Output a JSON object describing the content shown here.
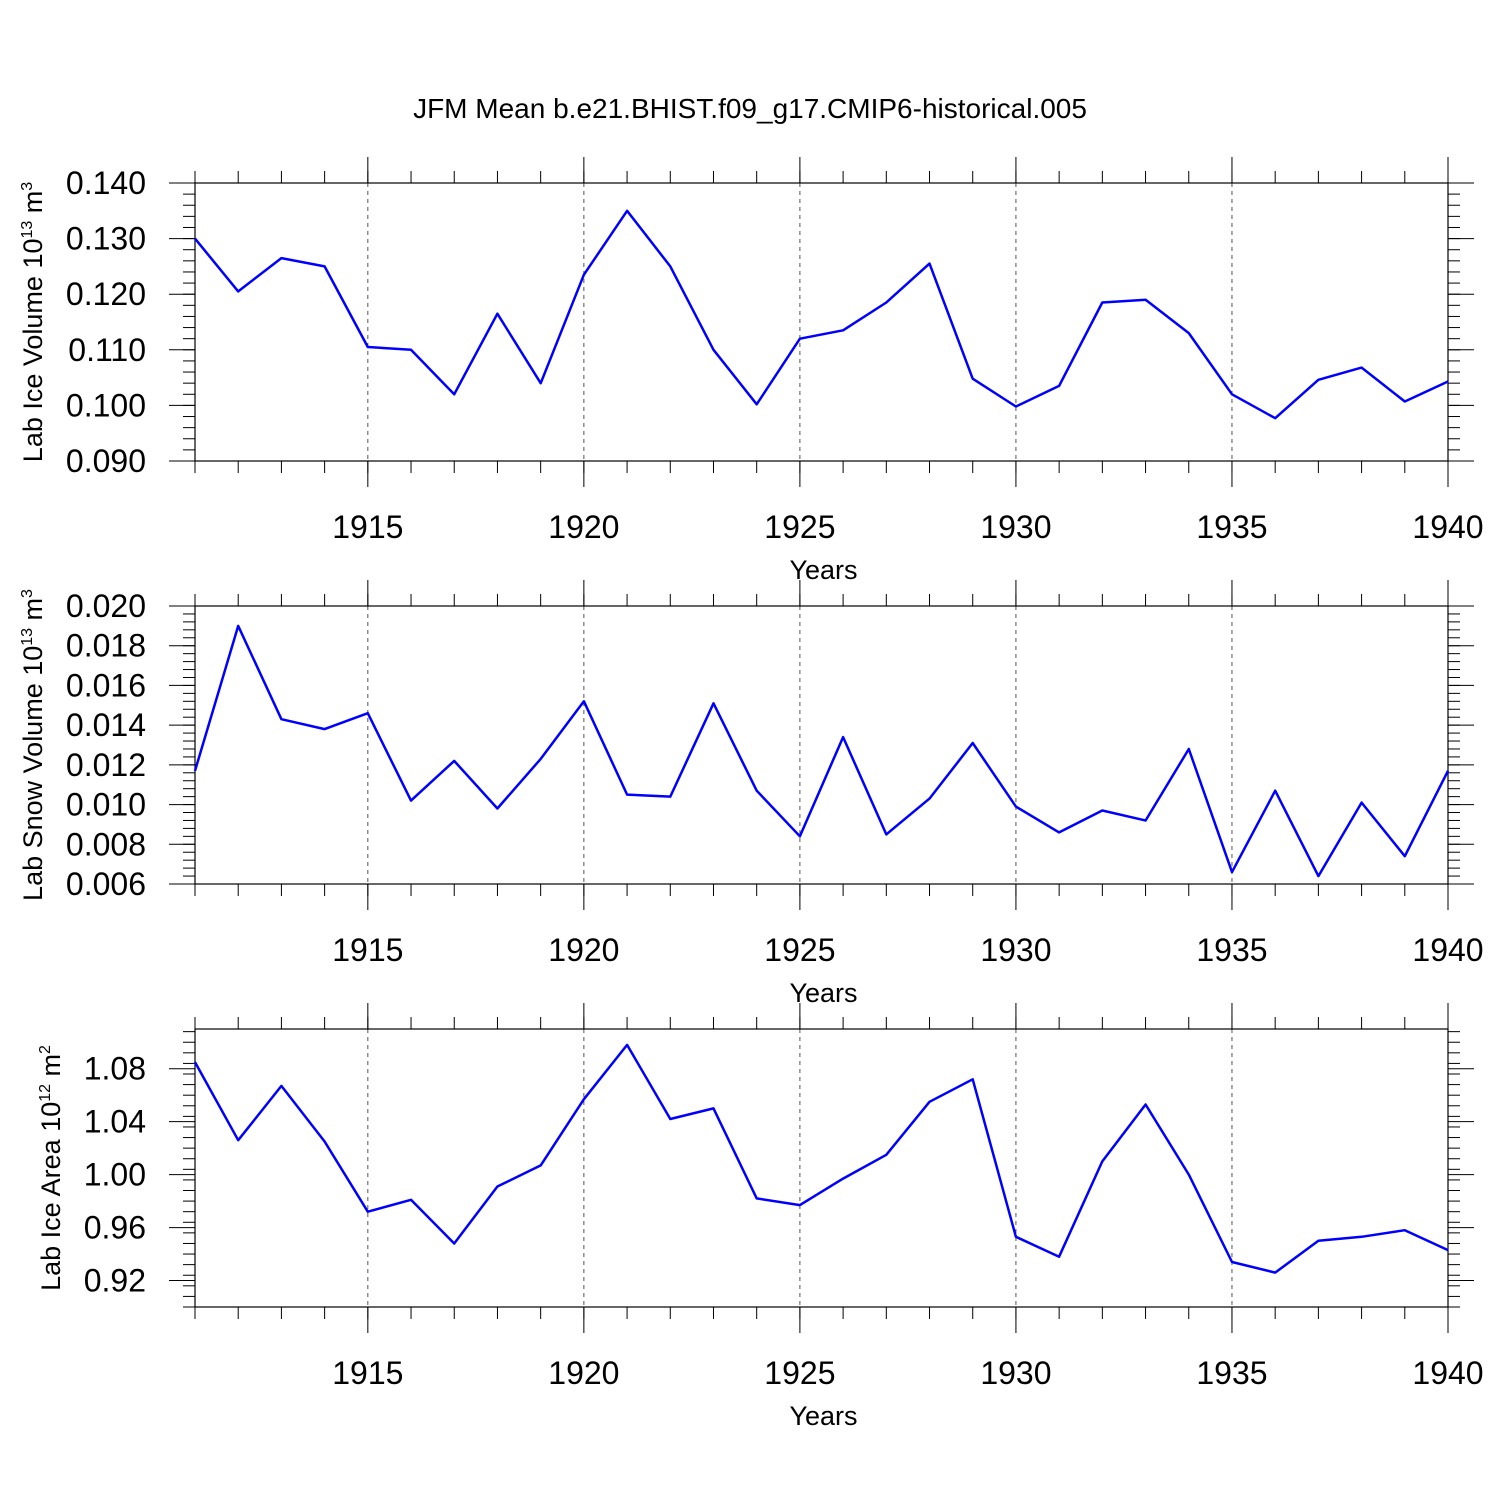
{
  "title": "JFM Mean b.e21.BHIST.f09_g17.CMIP6-historical.005",
  "chart_data": [
    {
      "type": "line",
      "title": "",
      "xlabel": "Years",
      "ylabel": {
        "prefix": "Lab Ice Volume 10",
        "exp": "13",
        "mid": " m",
        "unit_exp": "3"
      },
      "xlim": [
        1911,
        1940
      ],
      "ylim": [
        0.09,
        0.14
      ],
      "yticks": [
        0.09,
        0.1,
        0.11,
        0.12,
        0.13,
        0.14
      ],
      "yticklabels": [
        "0.090",
        "0.100",
        "0.110",
        "0.120",
        "0.130",
        "0.140"
      ],
      "xticks": [
        1915,
        1920,
        1925,
        1930,
        1935,
        1940
      ],
      "xticklabels": [
        "1915",
        "1920",
        "1925",
        "1930",
        "1935",
        "1940"
      ],
      "grid": "vertical dashed at major x ticks",
      "series_color": "#0000ff",
      "x": [
        1911,
        1912,
        1913,
        1914,
        1915,
        1916,
        1917,
        1918,
        1919,
        1920,
        1921,
        1922,
        1923,
        1924,
        1925,
        1926,
        1927,
        1928,
        1929,
        1930,
        1931,
        1932,
        1933,
        1934,
        1935,
        1936,
        1937,
        1938,
        1939,
        1940
      ],
      "values": [
        0.13,
        0.1205,
        0.1265,
        0.125,
        0.1105,
        0.11,
        0.102,
        0.1165,
        0.104,
        0.1235,
        0.135,
        0.125,
        0.11,
        0.1002,
        0.112,
        0.1135,
        0.1185,
        0.1255,
        0.1048,
        0.0998,
        0.1035,
        0.1185,
        0.119,
        0.113,
        0.102,
        0.0977,
        0.1046,
        0.1068,
        0.1007,
        0.1043
      ]
    },
    {
      "type": "line",
      "title": "",
      "xlabel": "Years",
      "ylabel": {
        "prefix": "Lab Snow Volume 10",
        "exp": "13",
        "mid": " m",
        "unit_exp": "3"
      },
      "xlim": [
        1911,
        1940
      ],
      "ylim": [
        0.006,
        0.02
      ],
      "yticks": [
        0.006,
        0.008,
        0.01,
        0.012,
        0.014,
        0.016,
        0.018,
        0.02
      ],
      "yticklabels": [
        "0.006",
        "0.008",
        "0.010",
        "0.012",
        "0.014",
        "0.016",
        "0.018",
        "0.020"
      ],
      "xticks": [
        1915,
        1920,
        1925,
        1930,
        1935,
        1940
      ],
      "xticklabels": [
        "1915",
        "1920",
        "1925",
        "1930",
        "1935",
        "1940"
      ],
      "grid": "vertical dashed at major x ticks",
      "series_color": "#0000ff",
      "x": [
        1911,
        1912,
        1913,
        1914,
        1915,
        1916,
        1917,
        1918,
        1919,
        1920,
        1921,
        1922,
        1923,
        1924,
        1925,
        1926,
        1927,
        1928,
        1929,
        1930,
        1931,
        1932,
        1933,
        1934,
        1935,
        1936,
        1937,
        1938,
        1939,
        1940
      ],
      "values": [
        0.0117,
        0.019,
        0.0143,
        0.0138,
        0.0146,
        0.0102,
        0.0122,
        0.0098,
        0.0123,
        0.0152,
        0.0105,
        0.0104,
        0.0151,
        0.0107,
        0.0084,
        0.0134,
        0.0085,
        0.0103,
        0.0131,
        0.0099,
        0.0086,
        0.0097,
        0.0092,
        0.0128,
        0.0066,
        0.0107,
        0.0064,
        0.0101,
        0.0074,
        0.0117
      ]
    },
    {
      "type": "line",
      "title": "",
      "xlabel": "Years",
      "ylabel": {
        "prefix": "Lab Ice Area 10",
        "exp": "12",
        "mid": " m",
        "unit_exp": "2"
      },
      "xlim": [
        1911,
        1940
      ],
      "ylim": [
        0.9,
        1.11
      ],
      "yticks": [
        0.92,
        0.96,
        1.0,
        1.04,
        1.08
      ],
      "yticklabels": [
        "0.92",
        "0.96",
        "1.00",
        "1.04",
        "1.08"
      ],
      "xticks": [
        1915,
        1920,
        1925,
        1930,
        1935,
        1940
      ],
      "xticklabels": [
        "1915",
        "1920",
        "1925",
        "1930",
        "1935",
        "1940"
      ],
      "grid": "vertical dashed at major x ticks",
      "series_color": "#0000ff",
      "x": [
        1911,
        1912,
        1913,
        1914,
        1915,
        1916,
        1917,
        1918,
        1919,
        1920,
        1921,
        1922,
        1923,
        1924,
        1925,
        1926,
        1927,
        1928,
        1929,
        1930,
        1931,
        1932,
        1933,
        1934,
        1935,
        1936,
        1937,
        1938,
        1939,
        1940
      ],
      "values": [
        1.085,
        1.026,
        1.067,
        1.025,
        0.972,
        0.981,
        0.948,
        0.991,
        1.007,
        1.057,
        1.098,
        1.042,
        1.05,
        0.982,
        0.977,
        0.997,
        1.015,
        1.055,
        1.072,
        0.953,
        0.938,
        1.01,
        1.053,
        1.0,
        0.934,
        0.926,
        0.95,
        0.953,
        0.958,
        0.943
      ]
    }
  ]
}
